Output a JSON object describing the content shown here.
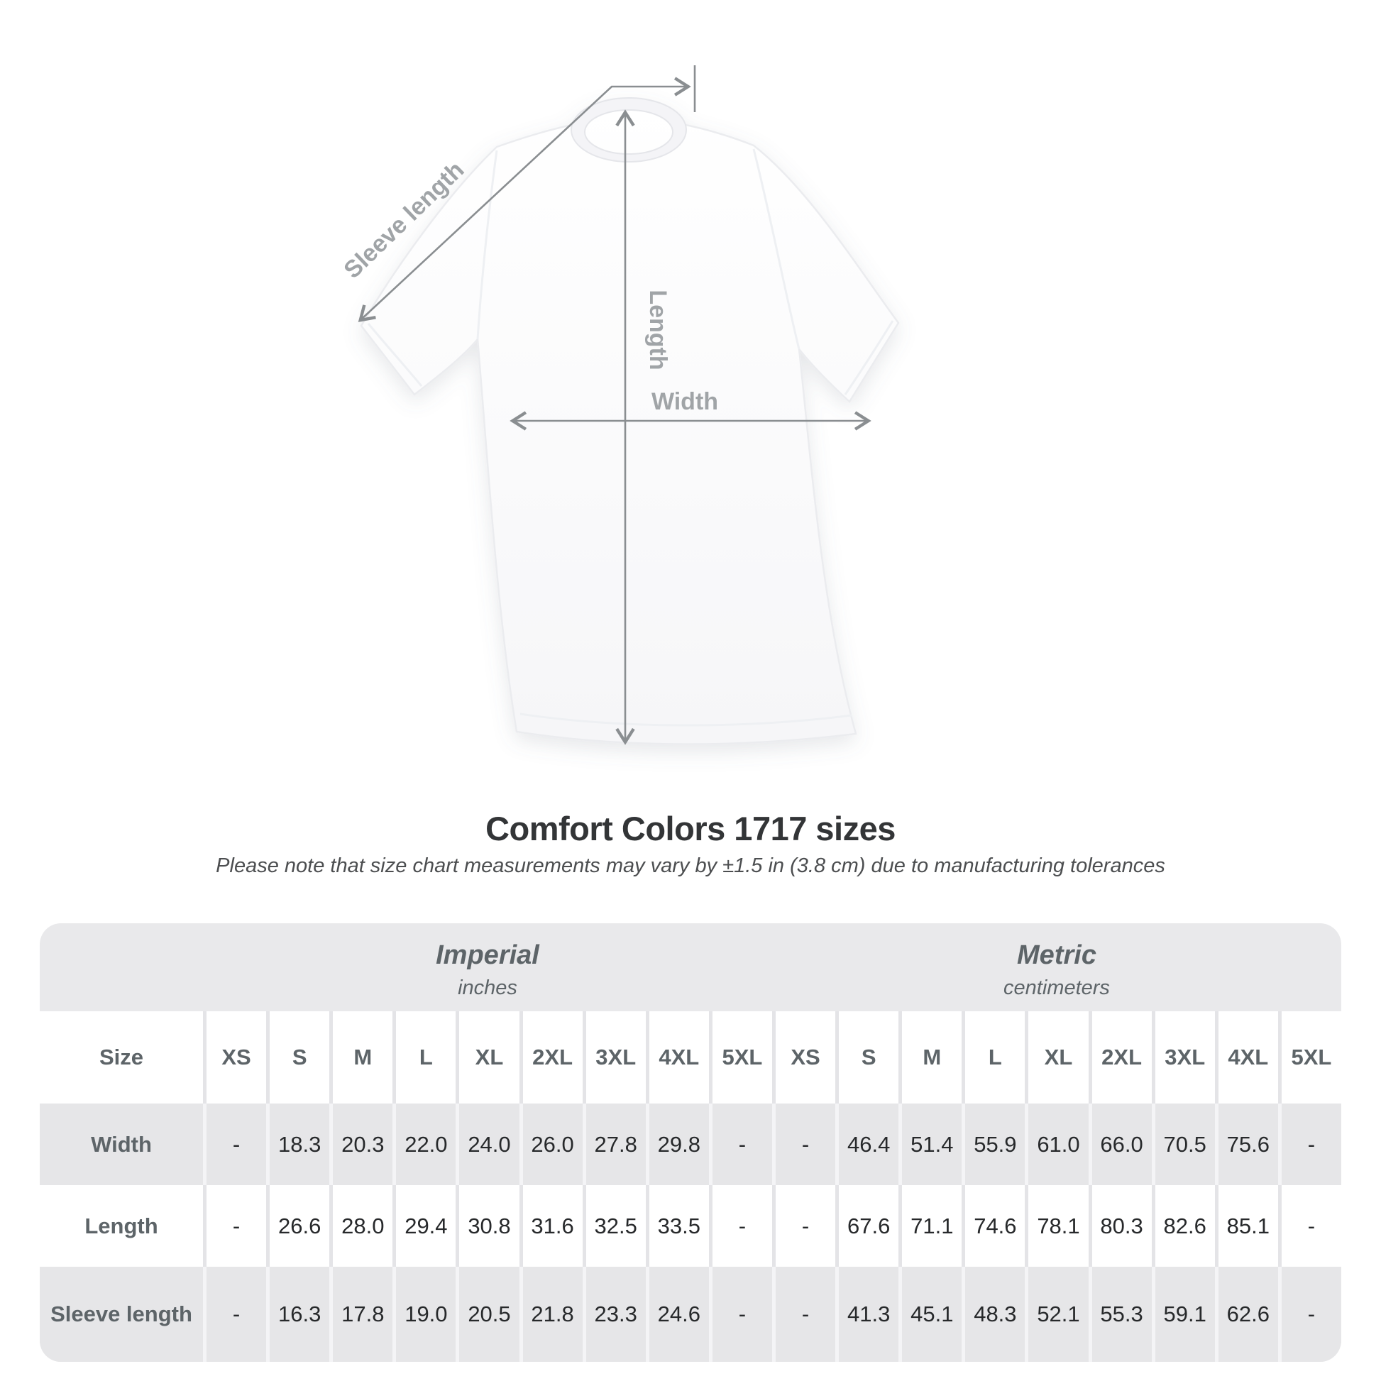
{
  "diagram": {
    "labels": {
      "sleeve_length": "Sleeve length",
      "length": "Length",
      "width": "Width"
    }
  },
  "heading": {
    "title": "Comfort Colors 1717 sizes",
    "subtitle": "Please note that size chart measurements may vary by ±1.5 in (3.8 cm) due to manufacturing tolerances"
  },
  "table": {
    "unit_groups": [
      {
        "name": "Imperial",
        "unit": "inches"
      },
      {
        "name": "Metric",
        "unit": "centimeters"
      }
    ],
    "size_label": "Size",
    "sizes": [
      "XS",
      "S",
      "M",
      "L",
      "XL",
      "2XL",
      "3XL",
      "4XL",
      "5XL"
    ],
    "rows": [
      {
        "label": "Width",
        "imperial": [
          "-",
          "18.3",
          "20.3",
          "22.0",
          "24.0",
          "26.0",
          "27.8",
          "29.8",
          "-"
        ],
        "metric": [
          "-",
          "46.4",
          "51.4",
          "55.9",
          "61.0",
          "66.0",
          "70.5",
          "75.6",
          "-"
        ]
      },
      {
        "label": "Length",
        "imperial": [
          "-",
          "26.6",
          "28.0",
          "29.4",
          "30.8",
          "31.6",
          "32.5",
          "33.5",
          "-"
        ],
        "metric": [
          "-",
          "67.6",
          "71.1",
          "74.6",
          "78.1",
          "80.3",
          "82.6",
          "85.1",
          "-"
        ]
      },
      {
        "label": "Sleeve length",
        "imperial": [
          "-",
          "16.3",
          "17.8",
          "19.0",
          "20.5",
          "21.8",
          "23.3",
          "24.6",
          "-"
        ],
        "metric": [
          "-",
          "41.3",
          "45.1",
          "48.3",
          "52.1",
          "55.3",
          "59.1",
          "62.6",
          "-"
        ]
      }
    ]
  },
  "colors": {
    "arrow_gray": "#8a8e91",
    "diagram_label_gray": "#a0a4a7",
    "table_band_gray": "#e6e6e8",
    "header_text": "#5d6468",
    "value_text": "#27292b",
    "title_text": "#333537"
  }
}
